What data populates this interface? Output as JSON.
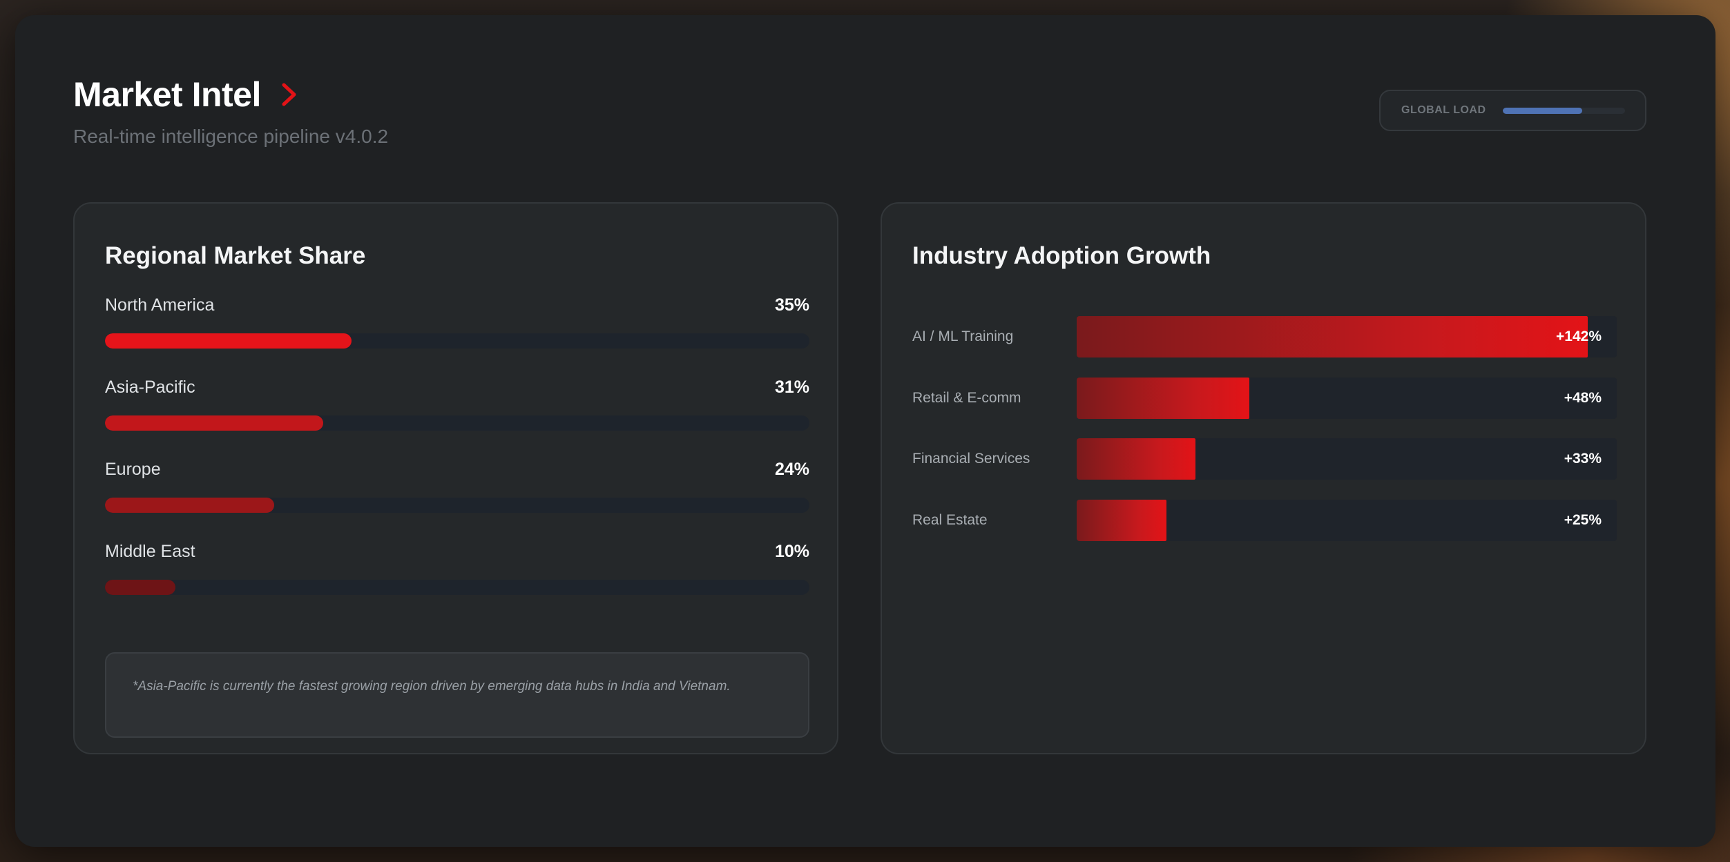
{
  "header": {
    "title": "Market Intel",
    "subtitle": "Real-time intelligence pipeline v4.0.2",
    "global_load": {
      "label": "GLOBAL LOAD",
      "value_pct": 65
    }
  },
  "regional": {
    "title": "Regional Market Share",
    "items": [
      {
        "name": "North America",
        "value_label": "35%",
        "value": 35,
        "color": "#e5141a"
      },
      {
        "name": "Asia-Pacific",
        "value_label": "31%",
        "value": 31,
        "color": "#c2171b"
      },
      {
        "name": "Europe",
        "value_label": "24%",
        "value": 24,
        "color": "#9c1719"
      },
      {
        "name": "Middle East",
        "value_label": "10%",
        "value": 10,
        "color": "#6e1416"
      }
    ],
    "note": "*Asia-Pacific is currently the fastest growing region driven by emerging data hubs in India and Vietnam."
  },
  "industry": {
    "title": "Industry Adoption Growth",
    "items": [
      {
        "name": "AI / ML Training",
        "value_label": "+142%",
        "value": 142
      },
      {
        "name": "Retail & E-comm",
        "value_label": "+48%",
        "value": 48
      },
      {
        "name": "Financial Services",
        "value_label": "+33%",
        "value": 33
      },
      {
        "name": "Real Estate",
        "value_label": "+25%",
        "value": 25
      }
    ],
    "scale_max": 150
  },
  "colors": {
    "accent": "#e31317",
    "load_bar": "#4f73b5",
    "card_bg": "#25282a"
  },
  "icons": {
    "title_chevron": "chevron-right-icon"
  }
}
